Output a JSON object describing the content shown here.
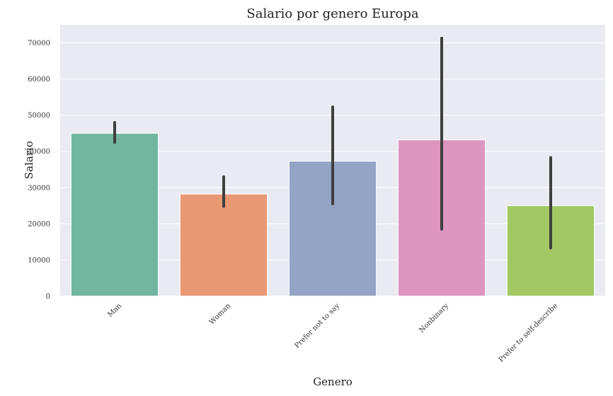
{
  "chart_data": {
    "type": "bar",
    "title": "Salario por genero Europa",
    "xlabel": "Genero",
    "ylabel": "Salario",
    "categories": [
      "Man",
      "Woman",
      "Prefer not to say",
      "Nonbinary",
      "Prefer to self-describe"
    ],
    "values": [
      45000,
      28200,
      37300,
      43200,
      25000
    ],
    "error_low": [
      42500,
      24800,
      25500,
      18500,
      13300
    ],
    "error_high": [
      48000,
      33000,
      52300,
      71300,
      38300
    ],
    "colors": [
      "#73b6a0",
      "#e99874",
      "#94a4c4",
      "#dc96c0",
      "#a2c863"
    ],
    "error_color": "#3f3f3f",
    "ylim": [
      0,
      75000
    ],
    "yticks": [
      0,
      10000,
      20000,
      30000,
      40000,
      50000,
      60000,
      70000
    ],
    "grid": true,
    "background_color": "#eaeaf2",
    "legend": "none"
  }
}
